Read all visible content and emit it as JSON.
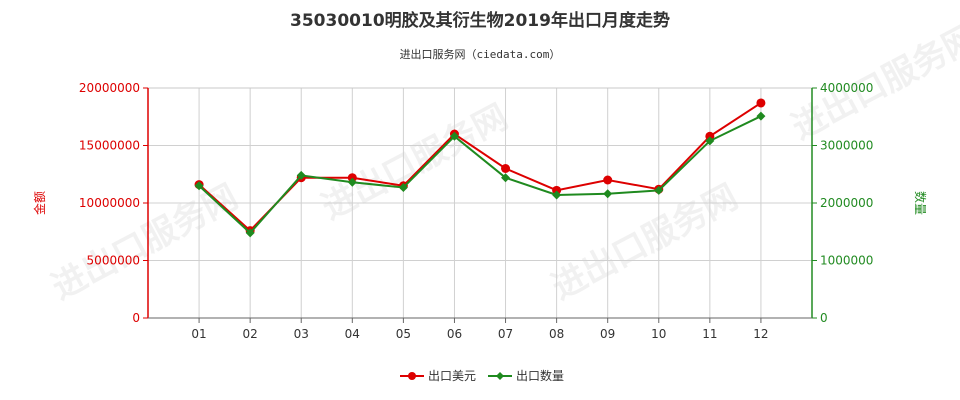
{
  "chart_data": {
    "type": "line",
    "title": "35030010明胶及其衍生物2019年出口月度走势",
    "subtitle": "进出口服务网（ciedata.com）",
    "watermark": "进出口服务网",
    "categories": [
      "01",
      "02",
      "03",
      "04",
      "05",
      "06",
      "07",
      "08",
      "09",
      "10",
      "11",
      "12"
    ],
    "y_left": {
      "label": "金额",
      "range": [
        0,
        20000000
      ],
      "ticks": [
        "0",
        "5000000",
        "10000000",
        "15000000",
        "20000000"
      ],
      "color": "#dd0000"
    },
    "y_right": {
      "label": "数量",
      "range": [
        0,
        4000000
      ],
      "ticks": [
        "0",
        "1000000",
        "2000000",
        "3000000",
        "4000000"
      ],
      "color": "#228b22"
    },
    "series": [
      {
        "name": "出口美元",
        "axis": "left",
        "color": "#dd0000",
        "values": [
          11600000,
          7600000,
          12200000,
          12200000,
          11500000,
          16000000,
          13000000,
          11100000,
          12000000,
          11200000,
          15800000,
          18700000
        ]
      },
      {
        "name": "出口数量",
        "axis": "right",
        "color": "#1f8a1f",
        "values": [
          2300000,
          1480000,
          2480000,
          2360000,
          2270000,
          3160000,
          2440000,
          2140000,
          2160000,
          2220000,
          3080000,
          3510000
        ]
      }
    ],
    "grid": true,
    "legend_position": "bottom-center"
  }
}
